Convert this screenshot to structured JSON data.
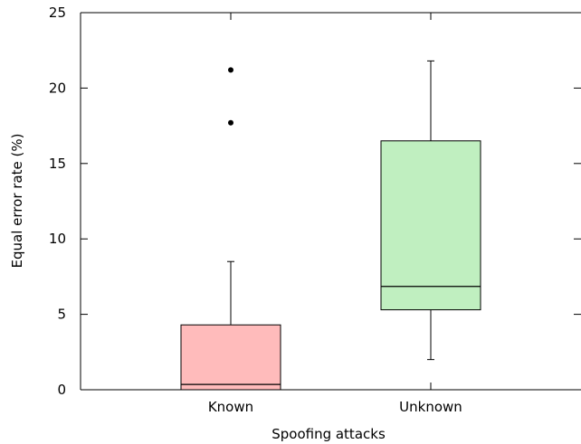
{
  "chart_data": {
    "type": "box",
    "title": "",
    "xlabel": "Spoofing attacks",
    "ylabel": "Equal error rate (%)",
    "ylim": [
      0,
      25
    ],
    "yticks": [
      "0",
      "5",
      "10",
      "15",
      "20",
      "25"
    ],
    "grid": false,
    "categories": [
      "Known",
      "Unknown"
    ],
    "boxes": [
      {
        "category": "Known",
        "min": 0,
        "q1": 0,
        "median": 0.35,
        "q3": 4.3,
        "max": 8.5,
        "outliers": [
          17.7,
          21.2
        ],
        "color": "#ffbbbb"
      },
      {
        "category": "Unknown",
        "min": 2.0,
        "q1": 5.3,
        "median": 6.85,
        "q3": 16.5,
        "max": 21.8,
        "outliers": [],
        "color": "#c0efc0"
      }
    ]
  }
}
